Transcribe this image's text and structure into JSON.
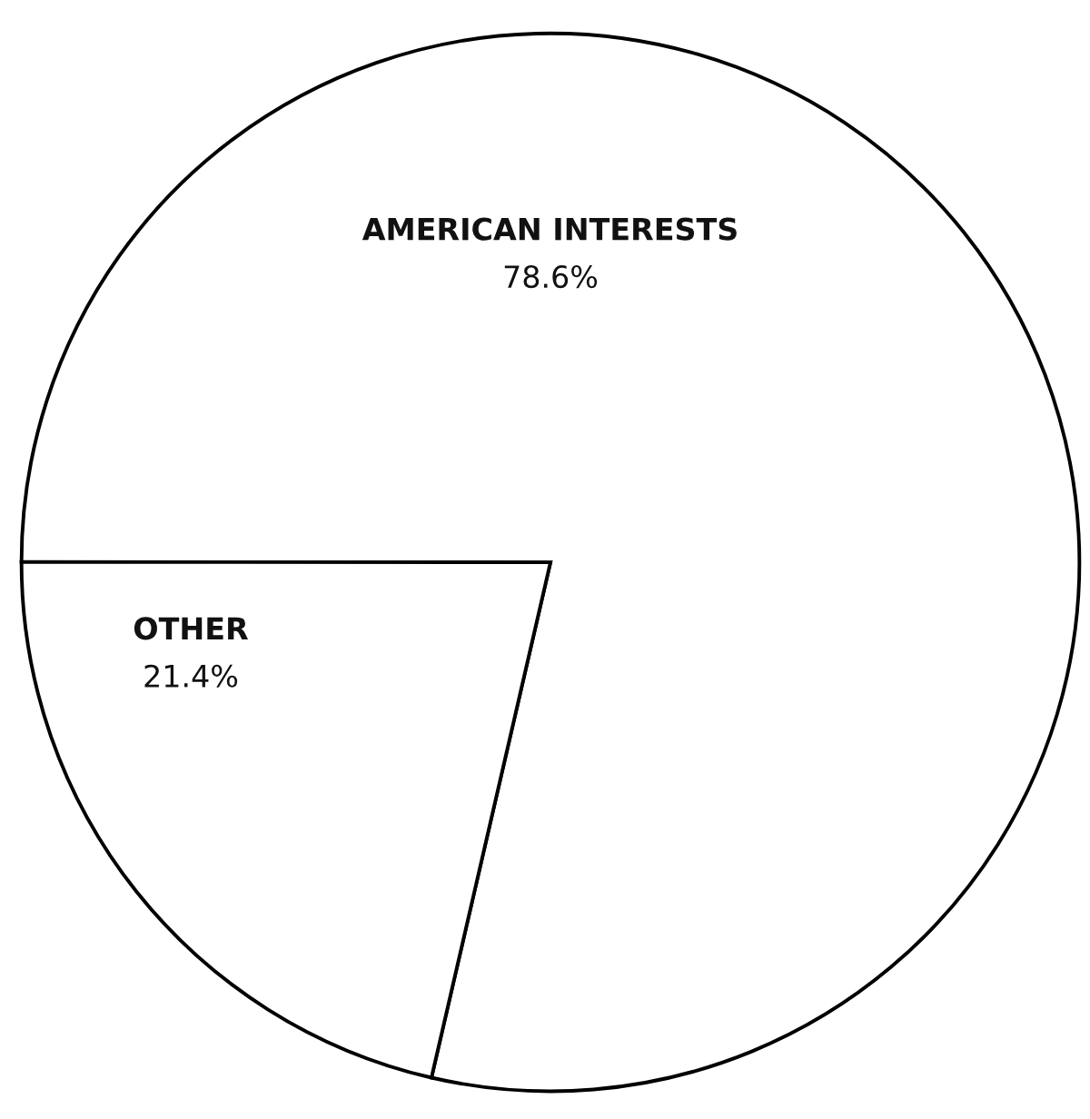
{
  "chart_data": {
    "type": "pie",
    "categories": [
      "AMERICAN INTERESTS",
      "OTHER"
    ],
    "values": [
      78.6,
      21.4
    ],
    "colors": [
      "#ffffff",
      "#ffffff"
    ],
    "value_labels": [
      "78.6%",
      "21.4%"
    ],
    "legend": false
  }
}
